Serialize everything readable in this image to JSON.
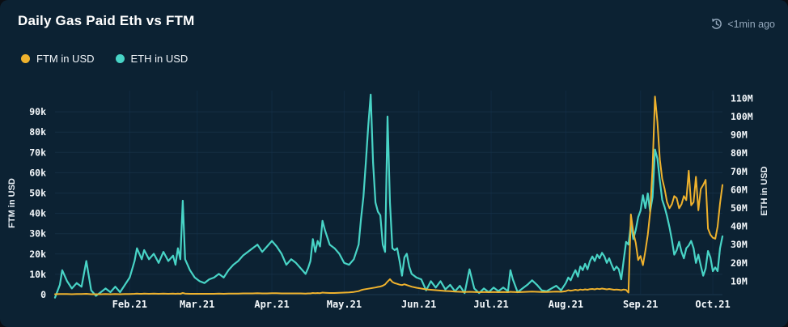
{
  "card": {
    "title": "Daily Gas Paid Eth vs FTM",
    "updated": "<1min ago"
  },
  "legend": [
    {
      "label": "FTM in USD",
      "color": "#efb22d"
    },
    {
      "label": "ETH in USD",
      "color": "#48d4c6"
    }
  ],
  "colors": {
    "card_bg": "#0c2233",
    "grid": "#1d3b53",
    "month_grid": "#14304a",
    "ftm_line": "#efb22d",
    "eth_line": "#48d4c6",
    "tick_text": "#f4f8fb",
    "updated_text": "#93a7bb"
  },
  "chart_data": {
    "type": "line",
    "title": "Daily Gas Paid Eth vs FTM",
    "grid": "horizontal",
    "legend_position": "top-left",
    "x_axis": {
      "range": [
        "2021-01-01",
        "2021-10-05"
      ],
      "months": [
        {
          "label": "Feb.21",
          "date": "02-01"
        },
        {
          "label": "Mar.21",
          "date": "03-01"
        },
        {
          "label": "Apr.21",
          "date": "04-01"
        },
        {
          "label": "May.21",
          "date": "05-01"
        },
        {
          "label": "Jun.21",
          "date": "06-01"
        },
        {
          "label": "Jul.21",
          "date": "07-01"
        },
        {
          "label": "Aug.21",
          "date": "08-01"
        },
        {
          "label": "Sep.21",
          "date": "09-01"
        },
        {
          "label": "Oct.21",
          "date": "10-01"
        }
      ]
    },
    "y_left": {
      "label": "FTM in USD",
      "unit": "thousand USD",
      "ticks": [
        "0",
        "10k",
        "20k",
        "30k",
        "40k",
        "50k",
        "60k",
        "70k",
        "80k",
        "90k"
      ],
      "tick_values_k": [
        0,
        10,
        20,
        30,
        40,
        50,
        60,
        70,
        80,
        90
      ],
      "max_k": 100
    },
    "y_right": {
      "label": "ETH in USD",
      "unit": "million USD",
      "ticks": [
        "10M",
        "20M",
        "30M",
        "40M",
        "50M",
        "60M",
        "70M",
        "80M",
        "90M",
        "100M",
        "110M"
      ],
      "tick_values_m": [
        10,
        20,
        30,
        40,
        50,
        60,
        70,
        80,
        90,
        100,
        110
      ],
      "max_m": 114
    },
    "series": [
      {
        "name": "FTM in USD",
        "axis": "left",
        "color": "#efb22d",
        "unit": "k USD"
      },
      {
        "name": "ETH in USD",
        "axis": "right",
        "color": "#48d4c6",
        "unit": "M USD"
      }
    ],
    "columns": [
      "date_2021",
      "eth_musd",
      "ftm_kusd"
    ],
    "points": [
      [
        "01-01",
        1,
        0.2
      ],
      [
        "01-03",
        8,
        0.3
      ],
      [
        "01-04",
        16,
        0.3
      ],
      [
        "01-06",
        10,
        0.3
      ],
      [
        "01-08",
        6,
        0.2
      ],
      [
        "01-10",
        9,
        0.3
      ],
      [
        "01-12",
        7,
        0.3
      ],
      [
        "01-14",
        21,
        0.4
      ],
      [
        "01-16",
        5,
        0.2
      ],
      [
        "01-18",
        2,
        0.2
      ],
      [
        "01-20",
        4,
        0.2
      ],
      [
        "01-22",
        6,
        0.3
      ],
      [
        "01-24",
        4,
        0.2
      ],
      [
        "01-26",
        7,
        0.3
      ],
      [
        "01-28",
        4,
        0.2
      ],
      [
        "01-30",
        8,
        0.3
      ],
      [
        "02-01",
        12,
        0.3
      ],
      [
        "02-03",
        21,
        0.4
      ],
      [
        "02-04",
        28,
        0.5
      ],
      [
        "02-05",
        25,
        0.4
      ],
      [
        "02-06",
        22,
        0.4
      ],
      [
        "02-07",
        27,
        0.5
      ],
      [
        "02-09",
        22,
        0.4
      ],
      [
        "02-11",
        25,
        0.5
      ],
      [
        "02-13",
        20,
        0.4
      ],
      [
        "02-15",
        26,
        0.5
      ],
      [
        "02-17",
        21,
        0.4
      ],
      [
        "02-19",
        24,
        0.5
      ],
      [
        "02-20",
        19,
        0.4
      ],
      [
        "02-21",
        28,
        0.5
      ],
      [
        "02-22",
        22,
        0.4
      ],
      [
        "02-23",
        54,
        0.8
      ],
      [
        "02-24",
        22,
        0.5
      ],
      [
        "02-26",
        16,
        0.4
      ],
      [
        "02-28",
        12,
        0.4
      ],
      [
        "03-02",
        10,
        0.4
      ],
      [
        "03-04",
        9,
        0.4
      ],
      [
        "03-06",
        11,
        0.4
      ],
      [
        "03-08",
        12,
        0.4
      ],
      [
        "03-10",
        14,
        0.5
      ],
      [
        "03-12",
        12,
        0.4
      ],
      [
        "03-14",
        16,
        0.5
      ],
      [
        "03-16",
        19,
        0.5
      ],
      [
        "03-18",
        21,
        0.5
      ],
      [
        "03-20",
        24,
        0.6
      ],
      [
        "03-22",
        26,
        0.6
      ],
      [
        "03-24",
        28,
        0.6
      ],
      [
        "03-26",
        30,
        0.7
      ],
      [
        "03-28",
        26,
        0.6
      ],
      [
        "03-30",
        29,
        0.6
      ],
      [
        "04-01",
        32,
        0.7
      ],
      [
        "04-03",
        29,
        0.7
      ],
      [
        "04-05",
        25,
        0.6
      ],
      [
        "04-07",
        19,
        0.6
      ],
      [
        "04-09",
        22,
        0.6
      ],
      [
        "04-11",
        20,
        0.6
      ],
      [
        "04-13",
        17,
        0.6
      ],
      [
        "04-15",
        14,
        0.5
      ],
      [
        "04-16",
        17,
        0.6
      ],
      [
        "04-17",
        21,
        0.6
      ],
      [
        "04-18",
        33,
        0.8
      ],
      [
        "04-19",
        26,
        0.7
      ],
      [
        "04-20",
        32,
        0.8
      ],
      [
        "04-21",
        29,
        0.7
      ],
      [
        "04-22",
        43,
        1.0
      ],
      [
        "04-23",
        38,
        0.9
      ],
      [
        "04-25",
        30,
        0.8
      ],
      [
        "04-27",
        28,
        0.8
      ],
      [
        "04-29",
        25,
        0.9
      ],
      [
        "05-01",
        20,
        1.0
      ],
      [
        "05-03",
        19,
        1.1
      ],
      [
        "05-05",
        22,
        1.3
      ],
      [
        "05-07",
        30,
        1.7
      ],
      [
        "05-08",
        44,
        2.2
      ],
      [
        "05-09",
        56,
        2.5
      ],
      [
        "05-10",
        75,
        2.7
      ],
      [
        "05-11",
        95,
        2.9
      ],
      [
        "05-12",
        112,
        3.1
      ],
      [
        "05-13",
        75,
        3.3
      ],
      [
        "05-14",
        53,
        3.5
      ],
      [
        "05-15",
        48,
        3.8
      ],
      [
        "05-16",
        46,
        4.0
      ],
      [
        "05-17",
        30,
        4.4
      ],
      [
        "05-18",
        26,
        5.0
      ],
      [
        "05-19",
        100,
        6.4
      ],
      [
        "05-20",
        53,
        7.6
      ],
      [
        "05-21",
        28,
        6.2
      ],
      [
        "05-22",
        27,
        5.6
      ],
      [
        "05-23",
        28,
        5.3
      ],
      [
        "05-24",
        21,
        4.9
      ],
      [
        "05-25",
        13,
        4.7
      ],
      [
        "05-26",
        23,
        5.1
      ],
      [
        "05-27",
        25,
        4.7
      ],
      [
        "05-28",
        18,
        4.3
      ],
      [
        "05-29",
        14,
        3.9
      ],
      [
        "05-31",
        12,
        3.4
      ],
      [
        "06-02",
        11,
        3.0
      ],
      [
        "06-04",
        5,
        2.6
      ],
      [
        "06-06",
        10,
        2.4
      ],
      [
        "06-08",
        6.5,
        2.2
      ],
      [
        "06-10",
        10,
        2.0
      ],
      [
        "06-12",
        5.5,
        1.8
      ],
      [
        "06-14",
        8,
        1.7
      ],
      [
        "06-16",
        4.5,
        1.5
      ],
      [
        "06-18",
        7.5,
        1.4
      ],
      [
        "06-20",
        3.5,
        1.3
      ],
      [
        "06-22",
        16.5,
        1.4
      ],
      [
        "06-24",
        6,
        1.3
      ],
      [
        "06-26",
        3.5,
        1.2
      ],
      [
        "06-28",
        6,
        1.3
      ],
      [
        "06-30",
        4,
        1.2
      ],
      [
        "07-02",
        6.5,
        1.3
      ],
      [
        "07-04",
        4.5,
        1.2
      ],
      [
        "07-06",
        6.5,
        1.3
      ],
      [
        "07-08",
        4.5,
        1.2
      ],
      [
        "07-09",
        16,
        1.4
      ],
      [
        "07-10",
        11,
        1.3
      ],
      [
        "07-12",
        4,
        1.2
      ],
      [
        "07-14",
        6,
        1.3
      ],
      [
        "07-16",
        8,
        1.4
      ],
      [
        "07-18",
        10.5,
        1.5
      ],
      [
        "07-20",
        8,
        1.4
      ],
      [
        "07-22",
        5,
        1.3
      ],
      [
        "07-24",
        4.5,
        1.3
      ],
      [
        "07-26",
        6,
        1.4
      ],
      [
        "07-28",
        7.5,
        1.5
      ],
      [
        "07-30",
        5,
        1.4
      ],
      [
        "08-01",
        9,
        1.7
      ],
      [
        "08-02",
        12,
        2.2
      ],
      [
        "08-03",
        10.5,
        1.9
      ],
      [
        "08-04",
        13.5,
        2.1
      ],
      [
        "08-05",
        16,
        2.4
      ],
      [
        "08-06",
        12.5,
        2.1
      ],
      [
        "08-07",
        18,
        2.5
      ],
      [
        "08-08",
        16,
        2.3
      ],
      [
        "08-09",
        19.5,
        2.6
      ],
      [
        "08-10",
        16.5,
        2.4
      ],
      [
        "08-11",
        21,
        2.7
      ],
      [
        "08-12",
        23.5,
        2.8
      ],
      [
        "08-13",
        21,
        2.6
      ],
      [
        "08-14",
        24.5,
        2.9
      ],
      [
        "08-15",
        22.5,
        2.7
      ],
      [
        "08-16",
        25.5,
        3.0
      ],
      [
        "08-17",
        23.5,
        2.8
      ],
      [
        "08-18",
        20,
        2.6
      ],
      [
        "08-19",
        22.5,
        2.8
      ],
      [
        "08-20",
        19,
        2.6
      ],
      [
        "08-21",
        16,
        2.4
      ],
      [
        "08-22",
        18,
        2.5
      ],
      [
        "08-23",
        16.5,
        2.4
      ],
      [
        "08-24",
        11,
        2.2
      ],
      [
        "08-25",
        21.5,
        2.5
      ],
      [
        "08-26",
        31.5,
        2.3
      ],
      [
        "08-27",
        30,
        1.0
      ],
      [
        "08-28",
        41,
        39.5
      ],
      [
        "08-29",
        33,
        30.5
      ],
      [
        "08-30",
        38,
        25.5
      ],
      [
        "08-31",
        45,
        17
      ],
      [
        "09-01",
        48.5,
        19
      ],
      [
        "09-02",
        57,
        14.5
      ],
      [
        "09-03",
        50,
        21.5
      ],
      [
        "09-04",
        58,
        29.5
      ],
      [
        "09-05",
        48,
        40.5
      ],
      [
        "09-06",
        56,
        62.5
      ],
      [
        "09-07",
        82,
        97.5
      ],
      [
        "09-08",
        77,
        85
      ],
      [
        "09-09",
        65,
        66.5
      ],
      [
        "09-10",
        54.5,
        57
      ],
      [
        "09-11",
        50.5,
        52
      ],
      [
        "09-12",
        45.5,
        45.5
      ],
      [
        "09-13",
        39.5,
        42.5
      ],
      [
        "09-14",
        32.5,
        44.5
      ],
      [
        "09-15",
        24.5,
        48.5
      ],
      [
        "09-16",
        27,
        47.5
      ],
      [
        "09-17",
        31.5,
        42.5
      ],
      [
        "09-18",
        26,
        44.5
      ],
      [
        "09-19",
        22.5,
        48.5
      ],
      [
        "09-20",
        28,
        46.5
      ],
      [
        "09-21",
        29.5,
        61
      ],
      [
        "09-22",
        32,
        44
      ],
      [
        "09-23",
        28,
        45.5
      ],
      [
        "09-24",
        20,
        58
      ],
      [
        "09-25",
        24.5,
        41.5
      ],
      [
        "09-26",
        18.5,
        52
      ],
      [
        "09-27",
        13,
        54
      ],
      [
        "09-28",
        17,
        56.5
      ],
      [
        "09-29",
        26.5,
        32.5
      ],
      [
        "09-30",
        23,
        29.5
      ],
      [
        "10-01",
        15.5,
        28
      ],
      [
        "10-02",
        17.5,
        27.5
      ],
      [
        "10-03",
        15.5,
        33.5
      ],
      [
        "10-04",
        28,
        45
      ],
      [
        "10-05",
        34.5,
        54
      ]
    ]
  }
}
